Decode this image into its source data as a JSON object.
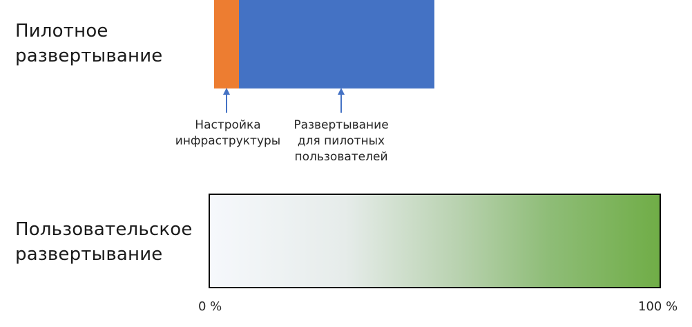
{
  "pilot_row": {
    "title": "Пилотное\nразвертывание",
    "segments": [
      {
        "label": "Настройка\nинфраструктуры",
        "color": "#ED7D31"
      },
      {
        "label": "Развертывание\nдля пилотных\nпользователей",
        "color": "#4472C4"
      }
    ]
  },
  "user_row": {
    "title": "Пользовательское\nразвертывание",
    "gradient_start_color": "#F6F8FC",
    "gradient_end_color": "#70AD47"
  },
  "axis": {
    "start_label": "0 %",
    "end_label": "100 %"
  },
  "colors": {
    "arrow": "#4472C4",
    "bar_border": "#000000"
  }
}
